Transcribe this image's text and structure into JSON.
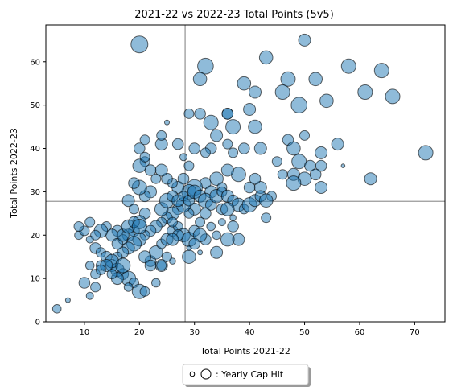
{
  "chart_data": {
    "type": "scatter",
    "title": "2021-22 vs 2022-23 Total Points (5v5)",
    "xlabel": "Total Points 2021-22",
    "ylabel": "Total Points 2022-23",
    "xlim": [
      3,
      75.5
    ],
    "ylim": [
      0,
      68.5
    ],
    "xticks": [
      10,
      20,
      30,
      40,
      50,
      60,
      70
    ],
    "yticks": [
      0,
      10,
      20,
      30,
      40,
      50,
      60
    ],
    "reference_lines": {
      "x": 28.3,
      "y": 27.8
    },
    "legend": {
      "label": ": Yearly Cap Hit",
      "placement": "bottom-center"
    },
    "colors": {
      "point_fill": "#1f77b4",
      "point_edge": "#000000",
      "reference_line": "#999999"
    },
    "size_encoding": "Yearly Cap Hit",
    "points": [
      [
        20,
        64,
        14
      ],
      [
        50,
        65,
        10
      ],
      [
        32,
        59,
        13
      ],
      [
        43,
        61,
        11
      ],
      [
        58,
        59,
        12
      ],
      [
        64,
        58,
        12
      ],
      [
        47,
        56,
        12
      ],
      [
        52,
        56,
        11
      ],
      [
        31,
        56,
        11
      ],
      [
        39,
        55,
        11
      ],
      [
        46,
        53,
        12
      ],
      [
        61,
        53,
        12
      ],
      [
        41,
        53,
        10
      ],
      [
        66,
        52,
        12
      ],
      [
        49,
        50,
        13
      ],
      [
        54,
        51,
        11
      ],
      [
        36,
        48,
        9
      ],
      [
        36,
        48,
        9
      ],
      [
        31,
        48,
        9
      ],
      [
        40,
        49,
        10
      ],
      [
        29,
        48,
        8
      ],
      [
        33,
        46,
        12
      ],
      [
        37,
        45,
        12
      ],
      [
        41,
        45,
        11
      ],
      [
        34,
        43,
        10
      ],
      [
        47,
        42,
        9
      ],
      [
        50,
        43,
        8
      ],
      [
        56,
        41,
        10
      ],
      [
        72,
        39,
        12
      ],
      [
        53,
        39,
        10
      ],
      [
        48,
        40,
        11
      ],
      [
        42,
        40,
        10
      ],
      [
        39,
        40,
        9
      ],
      [
        36,
        41,
        8
      ],
      [
        37,
        39,
        8
      ],
      [
        33,
        40,
        9
      ],
      [
        30,
        40,
        9
      ],
      [
        32,
        39,
        8
      ],
      [
        45,
        37,
        8
      ],
      [
        49,
        37,
        12
      ],
      [
        51,
        36,
        9
      ],
      [
        53,
        36,
        9
      ],
      [
        46,
        34,
        8
      ],
      [
        48,
        34,
        10
      ],
      [
        50,
        33,
        11
      ],
      [
        52,
        34,
        9
      ],
      [
        57,
        36,
        3
      ],
      [
        62,
        33,
        10
      ],
      [
        53,
        31,
        10
      ],
      [
        48,
        32,
        12
      ],
      [
        42,
        31,
        10
      ],
      [
        44,
        29,
        8
      ],
      [
        40,
        31,
        9
      ],
      [
        41,
        33,
        9
      ],
      [
        38,
        34,
        12
      ],
      [
        36,
        35,
        10
      ],
      [
        34,
        33,
        11
      ],
      [
        35,
        31,
        8
      ],
      [
        32,
        32,
        9
      ],
      [
        33,
        30,
        10
      ],
      [
        30,
        31,
        13
      ],
      [
        29,
        30,
        12
      ],
      [
        28,
        33,
        9
      ],
      [
        27,
        31,
        10
      ],
      [
        26,
        32,
        8
      ],
      [
        25,
        33,
        9
      ],
      [
        23,
        33,
        8
      ],
      [
        24,
        35,
        10
      ],
      [
        22,
        35,
        9
      ],
      [
        21,
        37,
        8
      ],
      [
        20,
        36,
        11
      ],
      [
        21,
        38,
        8
      ],
      [
        20,
        40,
        9
      ],
      [
        21,
        42,
        8
      ],
      [
        24,
        41,
        10
      ],
      [
        24,
        43,
        8
      ],
      [
        25,
        46,
        4
      ],
      [
        27,
        41,
        9
      ],
      [
        28,
        38,
        6
      ],
      [
        29,
        36,
        8
      ],
      [
        22,
        30,
        10
      ],
      [
        21,
        29,
        9
      ],
      [
        20,
        31,
        12
      ],
      [
        19,
        32,
        9
      ],
      [
        18,
        28,
        10
      ],
      [
        19,
        26,
        8
      ],
      [
        21,
        25,
        9
      ],
      [
        20,
        23,
        11
      ],
      [
        19,
        21,
        9
      ],
      [
        18,
        20,
        10
      ],
      [
        17,
        19,
        8
      ],
      [
        16,
        21,
        9
      ],
      [
        15,
        20,
        10
      ],
      [
        14,
        22,
        8
      ],
      [
        13,
        21,
        11
      ],
      [
        12,
        20,
        8
      ],
      [
        11,
        19,
        6
      ],
      [
        12,
        17,
        9
      ],
      [
        13,
        16,
        8
      ],
      [
        14,
        15,
        9
      ],
      [
        15,
        13,
        10
      ],
      [
        16,
        12,
        11
      ],
      [
        17,
        11,
        9
      ],
      [
        18,
        10,
        12
      ],
      [
        19,
        9,
        8
      ],
      [
        20,
        7,
        12
      ],
      [
        21,
        7,
        8
      ],
      [
        13,
        13,
        8
      ],
      [
        12,
        11,
        8
      ],
      [
        11,
        13,
        7
      ],
      [
        10,
        9,
        9
      ],
      [
        11,
        6,
        6
      ],
      [
        12,
        8,
        8
      ],
      [
        9,
        20,
        7
      ],
      [
        10,
        21,
        8
      ],
      [
        9,
        22,
        8
      ],
      [
        11,
        23,
        8
      ],
      [
        5,
        3,
        7
      ],
      [
        7,
        5,
        4
      ],
      [
        18,
        8,
        7
      ],
      [
        23,
        9,
        7
      ],
      [
        24,
        13,
        10
      ],
      [
        22,
        14,
        9
      ],
      [
        23,
        16,
        11
      ],
      [
        24,
        18,
        8
      ],
      [
        25,
        19,
        10
      ],
      [
        26,
        21,
        9
      ],
      [
        27,
        22,
        8
      ],
      [
        28,
        20,
        11
      ],
      [
        29,
        19,
        12
      ],
      [
        30,
        21,
        9
      ],
      [
        31,
        23,
        8
      ],
      [
        32,
        25,
        9
      ],
      [
        30,
        26,
        10
      ],
      [
        29,
        25,
        8
      ],
      [
        28,
        27,
        12
      ],
      [
        27,
        26,
        9
      ],
      [
        26,
        25,
        11
      ],
      [
        25,
        24,
        9
      ],
      [
        24,
        23,
        8
      ],
      [
        23,
        22,
        10
      ],
      [
        22,
        21,
        9
      ],
      [
        21,
        20,
        8
      ],
      [
        20,
        19,
        11
      ],
      [
        19,
        18,
        12
      ],
      [
        18,
        17,
        10
      ],
      [
        17,
        16,
        9
      ],
      [
        16,
        15,
        8
      ],
      [
        15,
        14,
        11
      ],
      [
        14,
        13,
        10
      ],
      [
        13,
        12,
        8
      ],
      [
        16,
        18,
        9
      ],
      [
        17,
        20,
        10
      ],
      [
        18,
        22,
        11
      ],
      [
        19,
        23,
        9
      ],
      [
        20,
        22,
        12
      ],
      [
        21,
        15,
        10
      ],
      [
        22,
        13,
        9
      ],
      [
        17,
        13,
        12
      ],
      [
        16,
        10,
        10
      ],
      [
        15,
        11,
        8
      ],
      [
        24,
        26,
        11
      ],
      [
        25,
        28,
        12
      ],
      [
        26,
        29,
        9
      ],
      [
        27,
        28,
        10
      ],
      [
        28,
        29,
        8
      ],
      [
        29,
        28,
        9
      ],
      [
        30,
        30,
        11
      ],
      [
        31,
        29,
        10
      ],
      [
        32,
        28,
        12
      ],
      [
        33,
        27,
        9
      ],
      [
        34,
        29,
        11
      ],
      [
        35,
        30,
        8
      ],
      [
        36,
        29,
        10
      ],
      [
        37,
        28,
        9
      ],
      [
        38,
        27,
        11
      ],
      [
        39,
        26,
        8
      ],
      [
        35,
        26,
        9
      ],
      [
        36,
        26,
        11
      ],
      [
        40,
        27,
        12
      ],
      [
        41,
        28,
        10
      ],
      [
        42,
        29,
        9
      ],
      [
        43,
        28,
        11
      ],
      [
        43,
        24,
        8
      ],
      [
        37,
        22,
        9
      ],
      [
        38,
        19,
        10
      ],
      [
        36,
        19,
        11
      ],
      [
        34,
        20,
        7
      ],
      [
        34,
        16,
        10
      ],
      [
        32,
        19,
        9
      ],
      [
        31,
        20,
        11
      ],
      [
        29,
        15,
        11
      ],
      [
        30,
        18,
        9
      ],
      [
        27,
        20,
        9
      ],
      [
        26,
        19,
        10
      ],
      [
        25,
        15,
        8
      ],
      [
        24,
        13,
        8
      ],
      [
        26,
        23,
        8
      ],
      [
        33,
        22,
        7
      ],
      [
        31,
        16,
        4
      ],
      [
        26,
        14,
        5
      ],
      [
        29,
        17,
        4
      ],
      [
        35,
        23,
        6
      ],
      [
        37,
        24,
        5
      ]
    ]
  },
  "legend_sample": {
    "small_dot": "small-marker",
    "large_dot": "large-marker"
  }
}
